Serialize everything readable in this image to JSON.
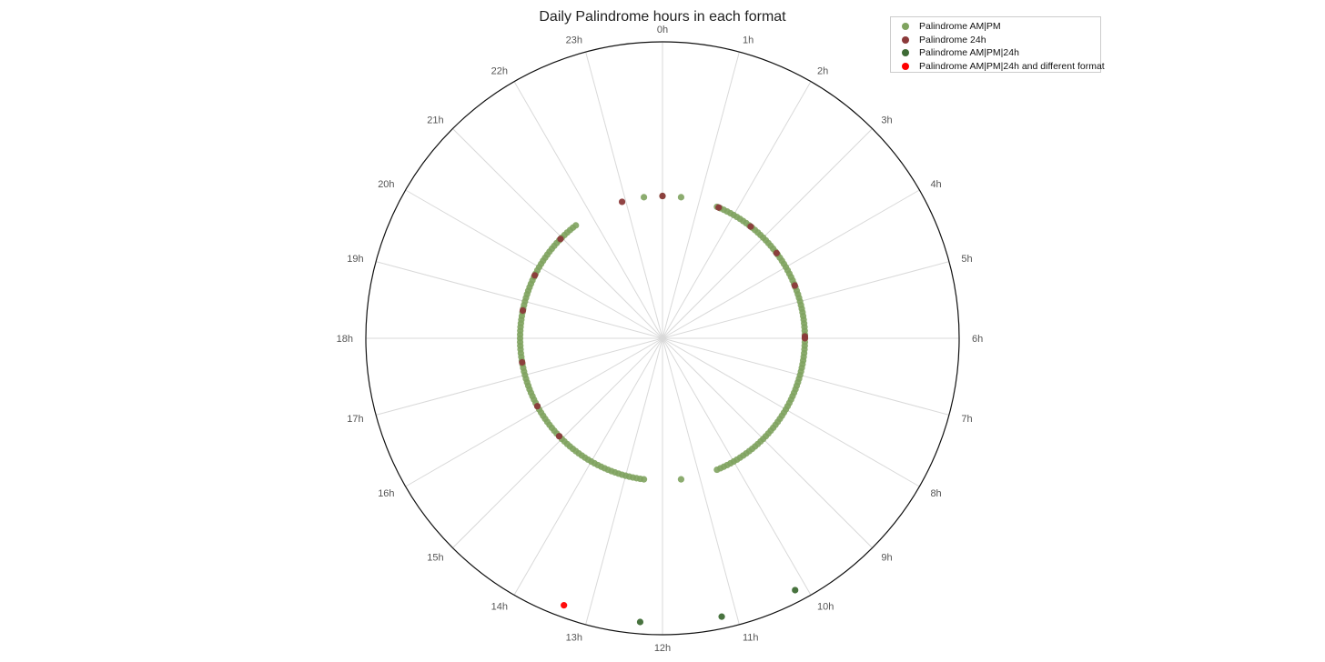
{
  "chart_data": {
    "type": "scatter",
    "subtype": "polar",
    "title": "Daily Palindrome hours in each format",
    "angular_axis": {
      "unit": "hour",
      "range": [
        0,
        24
      ],
      "direction": "clockwise",
      "zero_location": "top",
      "tick_labels": [
        "0h",
        "1h",
        "2h",
        "3h",
        "4h",
        "5h",
        "6h",
        "7h",
        "8h",
        "9h",
        "10h",
        "11h",
        "12h",
        "13h",
        "14h",
        "15h",
        "16h",
        "17h",
        "18h",
        "19h",
        "20h",
        "21h",
        "22h",
        "23h"
      ]
    },
    "radial_axis": {
      "range": [
        0,
        1
      ],
      "tick_labels_shown": false
    },
    "grid": true,
    "legend": {
      "placement": "top-right"
    },
    "series": [
      {
        "name": "Palindrome AM|PM",
        "color": "#7fa35f",
        "r": 0.48,
        "hours": [
          0.0,
          0.5,
          1.5,
          1.6,
          1.7,
          1.8,
          1.9,
          2.0,
          2.1,
          2.2,
          2.3,
          2.4,
          2.5,
          2.6,
          2.7,
          2.8,
          2.9,
          3.0,
          3.1,
          3.2,
          3.3,
          3.4,
          3.5,
          3.6,
          3.7,
          3.8,
          3.9,
          4.0,
          4.1,
          4.2,
          4.3,
          4.4,
          4.5,
          4.6,
          4.7,
          4.8,
          4.9,
          5.0,
          5.1,
          5.2,
          5.3,
          5.4,
          5.5,
          5.6,
          5.7,
          5.8,
          5.9,
          6.0,
          6.1,
          6.2,
          6.3,
          6.4,
          6.5,
          6.6,
          6.7,
          6.8,
          6.9,
          7.0,
          7.1,
          7.2,
          7.3,
          7.4,
          7.5,
          7.6,
          7.7,
          7.8,
          7.9,
          8.0,
          8.1,
          8.2,
          8.3,
          8.4,
          8.5,
          8.6,
          8.7,
          8.8,
          8.9,
          9.0,
          9.1,
          9.2,
          9.3,
          9.4,
          9.5,
          9.6,
          9.7,
          9.8,
          9.9,
          10.0,
          10.1,
          10.2,
          10.3,
          10.4,
          10.5,
          11.5,
          12.5,
          12.6,
          12.7,
          12.8,
          12.9,
          13.0,
          13.1,
          13.2,
          13.3,
          13.4,
          13.5,
          13.6,
          13.7,
          13.8,
          13.9,
          14.0,
          14.1,
          14.2,
          14.3,
          14.4,
          14.5,
          14.6,
          14.7,
          14.8,
          14.9,
          15.0,
          15.1,
          15.2,
          15.3,
          15.4,
          15.5,
          15.6,
          15.7,
          15.8,
          15.9,
          16.0,
          16.1,
          16.2,
          16.3,
          16.4,
          16.5,
          16.6,
          16.7,
          16.8,
          16.9,
          17.0,
          17.1,
          17.2,
          17.3,
          17.4,
          17.5,
          17.6,
          17.7,
          17.8,
          17.9,
          18.0,
          18.1,
          18.2,
          18.3,
          18.4,
          18.5,
          18.6,
          18.7,
          18.8,
          18.9,
          19.0,
          19.1,
          19.2,
          19.3,
          19.4,
          19.5,
          19.6,
          19.7,
          19.8,
          19.9,
          20.0,
          20.1,
          20.2,
          20.3,
          20.4,
          20.5,
          20.6,
          20.7,
          20.8,
          20.9,
          21.0,
          21.1,
          21.2,
          21.3,
          21.4,
          21.5,
          23.5
        ]
      },
      {
        "name": "Palindrome 24h",
        "color": "#8b3a3a",
        "r": 0.48,
        "hours": [
          1.55,
          2.55,
          3.55,
          4.55,
          5.95,
          6.0,
          15.1,
          16.1,
          17.35,
          18.75,
          19.75,
          20.95,
          22.9,
          0.0
        ]
      },
      {
        "name": "Palindrome AM|PM|24h",
        "color": "#3e6b35",
        "r": 0.96,
        "hours": [
          10.15,
          11.2,
          12.3
        ]
      },
      {
        "name": "Palindrome AM|PM|24h and different format",
        "color": "#ff0000",
        "r": 0.96,
        "hours": [
          13.35
        ]
      }
    ]
  }
}
